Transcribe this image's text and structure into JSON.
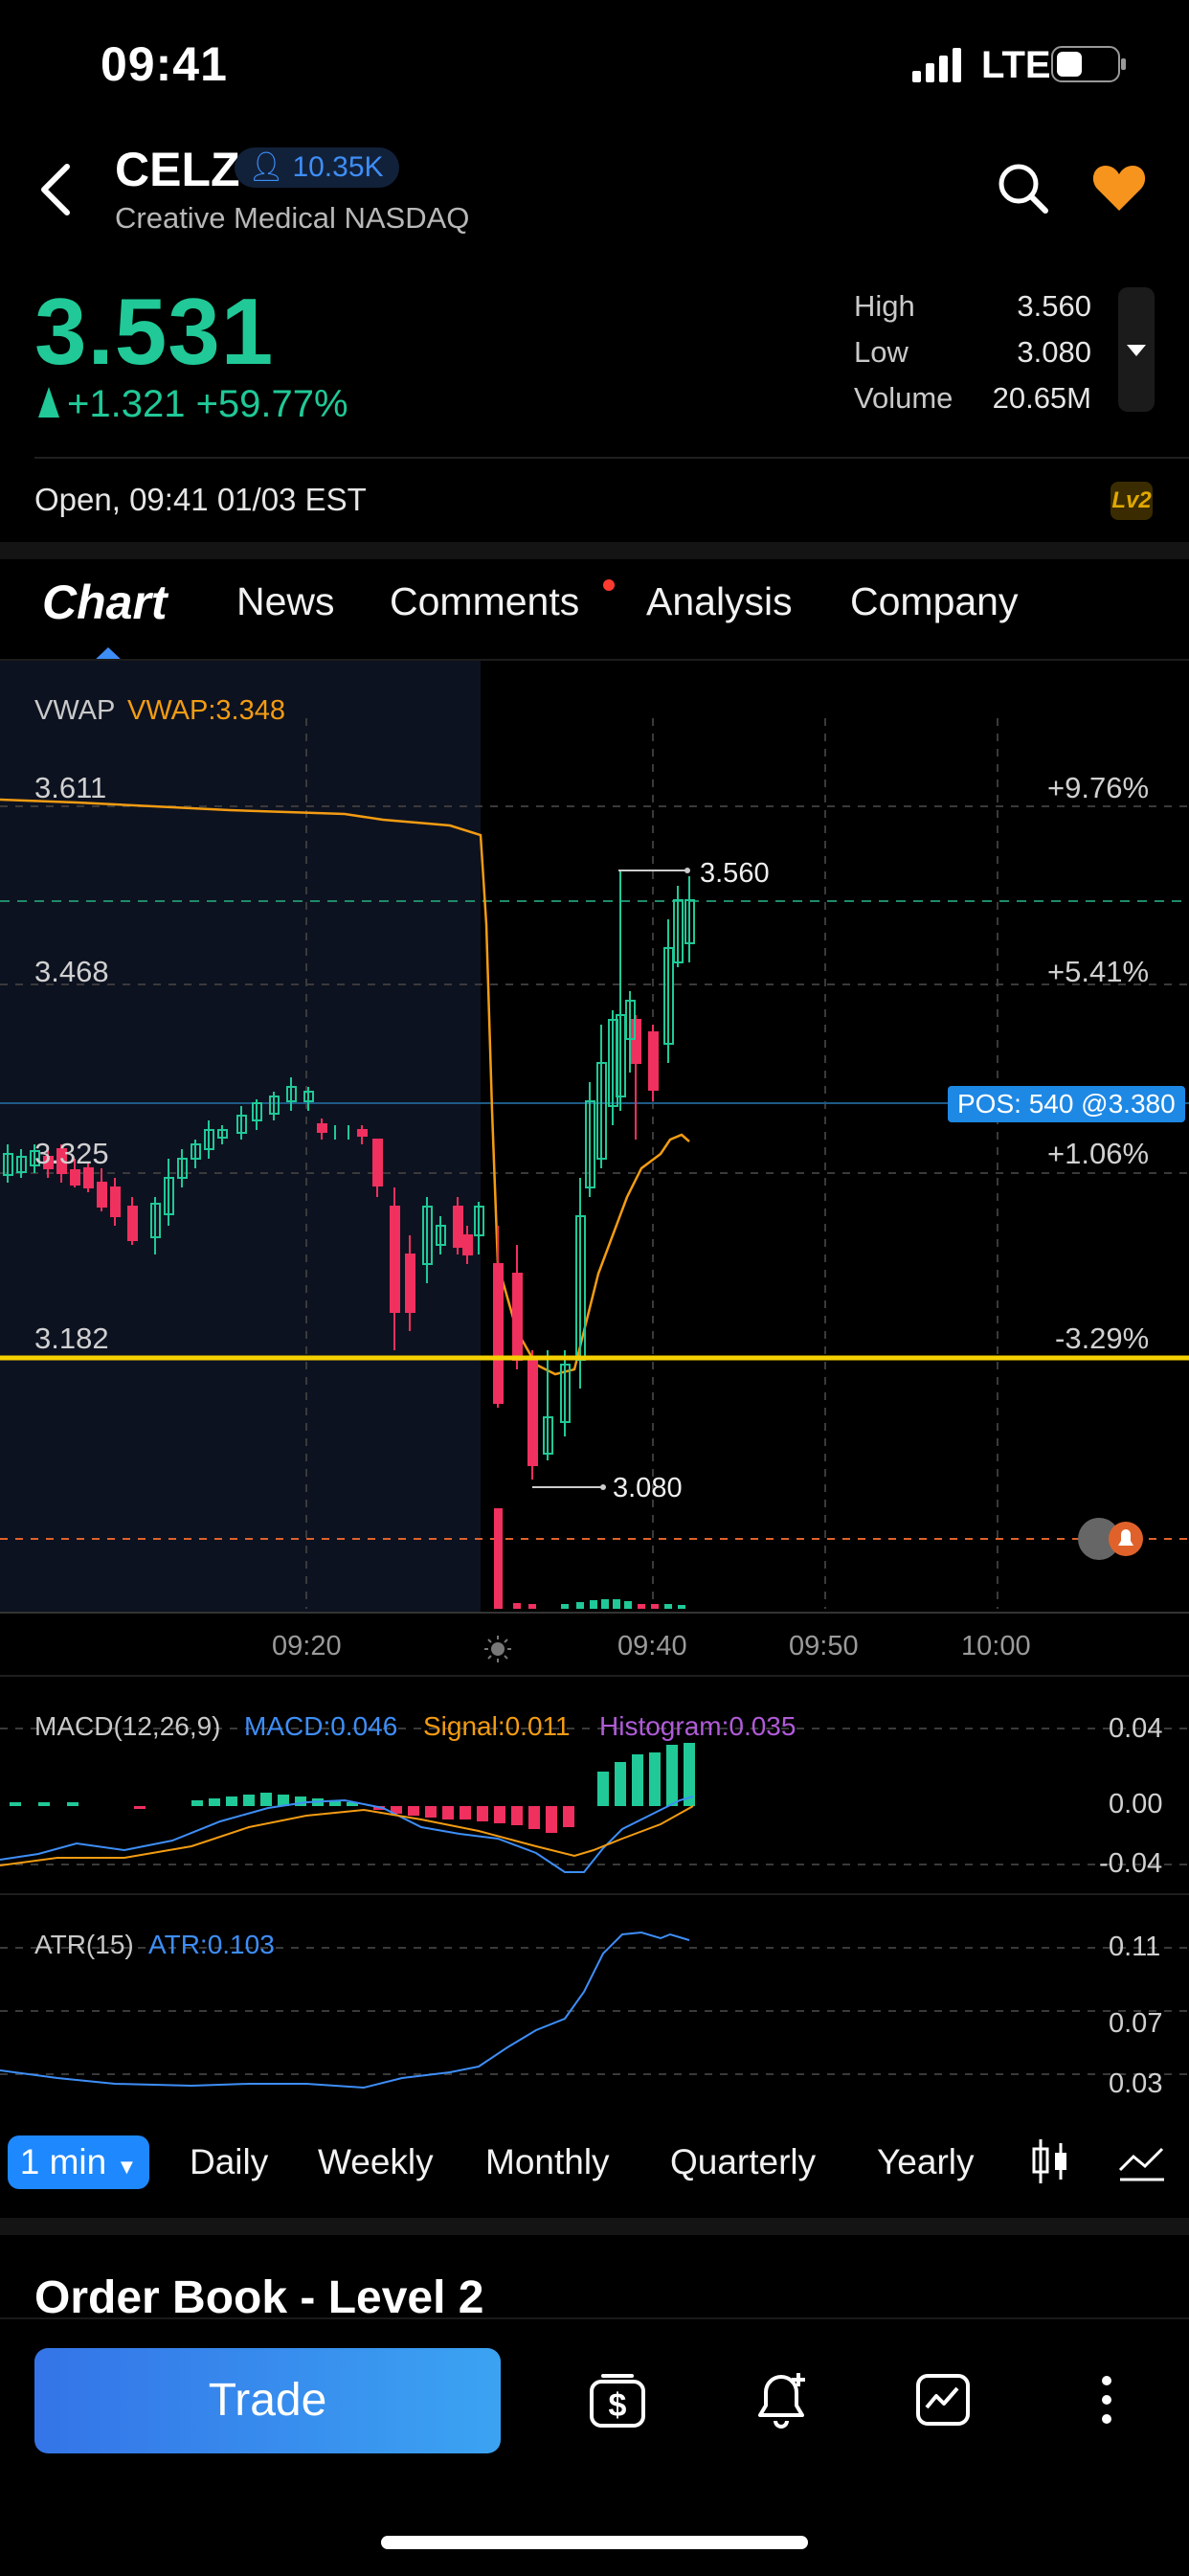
{
  "status_bar": {
    "time": "09:41",
    "network": "LTE"
  },
  "header": {
    "ticker": "CELZ",
    "followers": "10.35K",
    "company": "Creative Medical NASDAQ",
    "icons": [
      "back-icon",
      "search-icon",
      "heart-icon"
    ]
  },
  "quote": {
    "price": "3.531",
    "change": "+1.321 +59.77%",
    "high_label": "High",
    "high": "3.560",
    "low_label": "Low",
    "low": "3.080",
    "volume_label": "Volume",
    "volume": "20.65M",
    "session": "Open,   09:41 01/03 EST",
    "lv2_badge": "Lv2"
  },
  "tabs": {
    "chart": "Chart",
    "items": [
      "News",
      "Comments",
      "Analysis",
      "Company"
    ],
    "active": "Chart"
  },
  "main_chart": {
    "indicator": "VWAP",
    "vwap_value": "VWAP:3.348",
    "price_labels": [
      "3.611",
      "3.468",
      "3.325",
      "3.182"
    ],
    "pct_labels": [
      "+9.76%",
      "+5.41%",
      "+1.06%",
      "-3.29%"
    ],
    "high_marker": "3.560",
    "low_marker": "3.080",
    "position": "POS: 540 @3.380",
    "time_labels": [
      "09:20",
      "09:40",
      "09:50",
      "10:00"
    ],
    "colors": {
      "up": "#20c997",
      "down": "#f0305f",
      "vwap": "#f39c12",
      "position_line": "#f5d000"
    }
  },
  "macd": {
    "title": "MACD(12,26,9)",
    "macd": "MACD:0.046",
    "signal": "Signal:0.011",
    "histogram": "Histogram:0.035",
    "scale": [
      "0.04",
      "0.00",
      "-0.04"
    ]
  },
  "atr": {
    "title": "ATR(15)",
    "atr": "ATR:0.103",
    "scale": [
      "0.11",
      "0.07",
      "0.03"
    ]
  },
  "timeframes": {
    "active": "1 min",
    "items": [
      "Daily",
      "Weekly",
      "Monthly",
      "Quarterly",
      "Yearly"
    ],
    "icons": [
      "candle-type-icon",
      "indicator-icon"
    ]
  },
  "order_book": {
    "title": "Order Book - Level 2"
  },
  "bottom": {
    "trade": "Trade",
    "icons": [
      "dollar-icon",
      "alert-add-icon",
      "chart-box-icon",
      "more-icon"
    ]
  }
}
